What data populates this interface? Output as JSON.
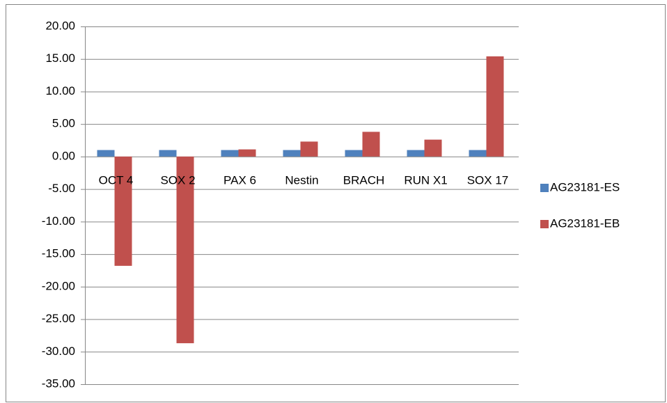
{
  "chart_data": {
    "type": "bar",
    "categories": [
      "OCT 4",
      "SOX 2",
      "PAX 6",
      "Nestin",
      "BRACH",
      "RUN X1",
      "SOX 17"
    ],
    "series": [
      {
        "name": "AG23181-ES",
        "color": "#4f81bd",
        "values": [
          1,
          1,
          1,
          1,
          1,
          1,
          1
        ]
      },
      {
        "name": "AG23181-EB",
        "color": "#c0504d",
        "values": [
          -16.8,
          -28.7,
          1.1,
          2.3,
          3.8,
          2.6,
          15.4
        ]
      }
    ],
    "ylim": [
      -35,
      20
    ],
    "yticks": [
      {
        "value": -35,
        "label": "-35.00"
      },
      {
        "value": -30,
        "label": "-30.00"
      },
      {
        "value": -25,
        "label": "-25.00"
      },
      {
        "value": -20,
        "label": "-20.00"
      },
      {
        "value": -15,
        "label": "-15.00"
      },
      {
        "value": -10,
        "label": "-10.00"
      },
      {
        "value": -5,
        "label": "-5.00"
      },
      {
        "value": 0,
        "label": "0.00"
      },
      {
        "value": 5,
        "label": "5.00"
      },
      {
        "value": 10,
        "label": "10.00"
      },
      {
        "value": 15,
        "label": "15.00"
      },
      {
        "value": 20,
        "label": "20.00"
      }
    ],
    "grid": true,
    "legend": "right"
  }
}
